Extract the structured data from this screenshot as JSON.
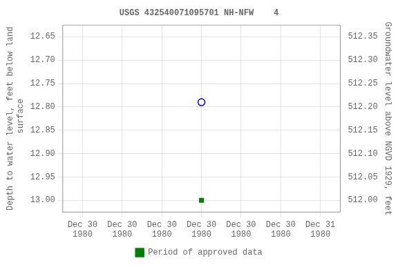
{
  "chart_data": {
    "type": "scatter",
    "title": "USGS 432540071095701 NH-NFW    4",
    "categories": [
      "Dec 30\n1980",
      "Dec 30\n1980",
      "Dec 30\n1980",
      "Dec 30\n1980",
      "Dec 30\n1980",
      "Dec 30\n1980",
      "Dec 31\n1980"
    ],
    "ylabel": "Depth to water level, feet below land\n surface",
    "y2label": "Groundwater level above NGVD 1929, feet",
    "ylim": [
      13.025,
      12.625
    ],
    "yticks": [
      12.65,
      {
        "value": 12.7,
        "label": "12.70"
      },
      12.75,
      {
        "value": 12.8,
        "label": "12.80"
      },
      12.85,
      {
        "value": 12.9,
        "label": "12.90"
      },
      12.95,
      {
        "value": 13,
        "label": "13.00"
      }
    ],
    "y2lim": [
      511.975,
      512.375
    ],
    "y2ticks": [
      512.35,
      {
        "value": 512.3,
        "label": "512.30"
      },
      512.25,
      {
        "value": 512.2,
        "label": "512.20"
      },
      512.15,
      {
        "value": 512.1,
        "label": "512.10"
      },
      512.05,
      {
        "value": 512,
        "label": "512.00"
      }
    ],
    "series": [
      {
        "color": "blue",
        "marker": "circle",
        "values": [
          null,
          null,
          null,
          12.79,
          null,
          null,
          null
        ]
      },
      {
        "name": "Period of approved data",
        "color": "#008000",
        "marker": "square",
        "values": [
          null,
          null,
          null,
          13,
          null,
          null,
          null
        ]
      }
    ],
    "grid": true,
    "legend": "bottom"
  }
}
